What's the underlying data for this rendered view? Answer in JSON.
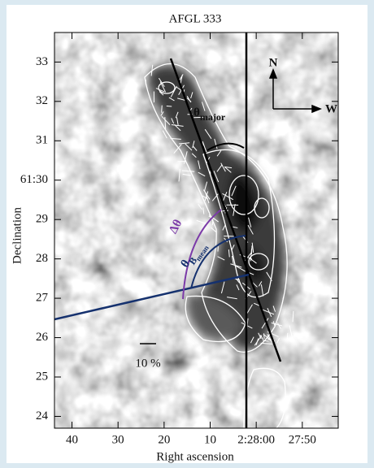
{
  "chart_data": {
    "type": "image",
    "title": "AFGL 333",
    "x_label": "Right ascension",
    "y_label": "Declination",
    "xlim": [
      43.8,
      -17.8
    ],
    "xticks": [
      40,
      30,
      20,
      10,
      {
        "value": 0,
        "label": "2:28:00"
      },
      {
        "value": -10,
        "label": "27:50"
      }
    ],
    "ylim": [
      23.7,
      33.75
    ],
    "yticks": [
      33,
      32,
      31,
      {
        "value": 30,
        "label": "61:30"
      },
      29,
      28,
      27,
      26,
      25,
      24
    ],
    "annotations": {
      "theta_major": {
        "symbol": "θ",
        "sub": "major"
      },
      "delta_theta": "Δθ",
      "theta_b_mean": {
        "symbol": "θ",
        "sub": "B",
        "subsub": "mean"
      },
      "north": "N",
      "west": "W",
      "scale_bar": "10 %"
    }
  }
}
